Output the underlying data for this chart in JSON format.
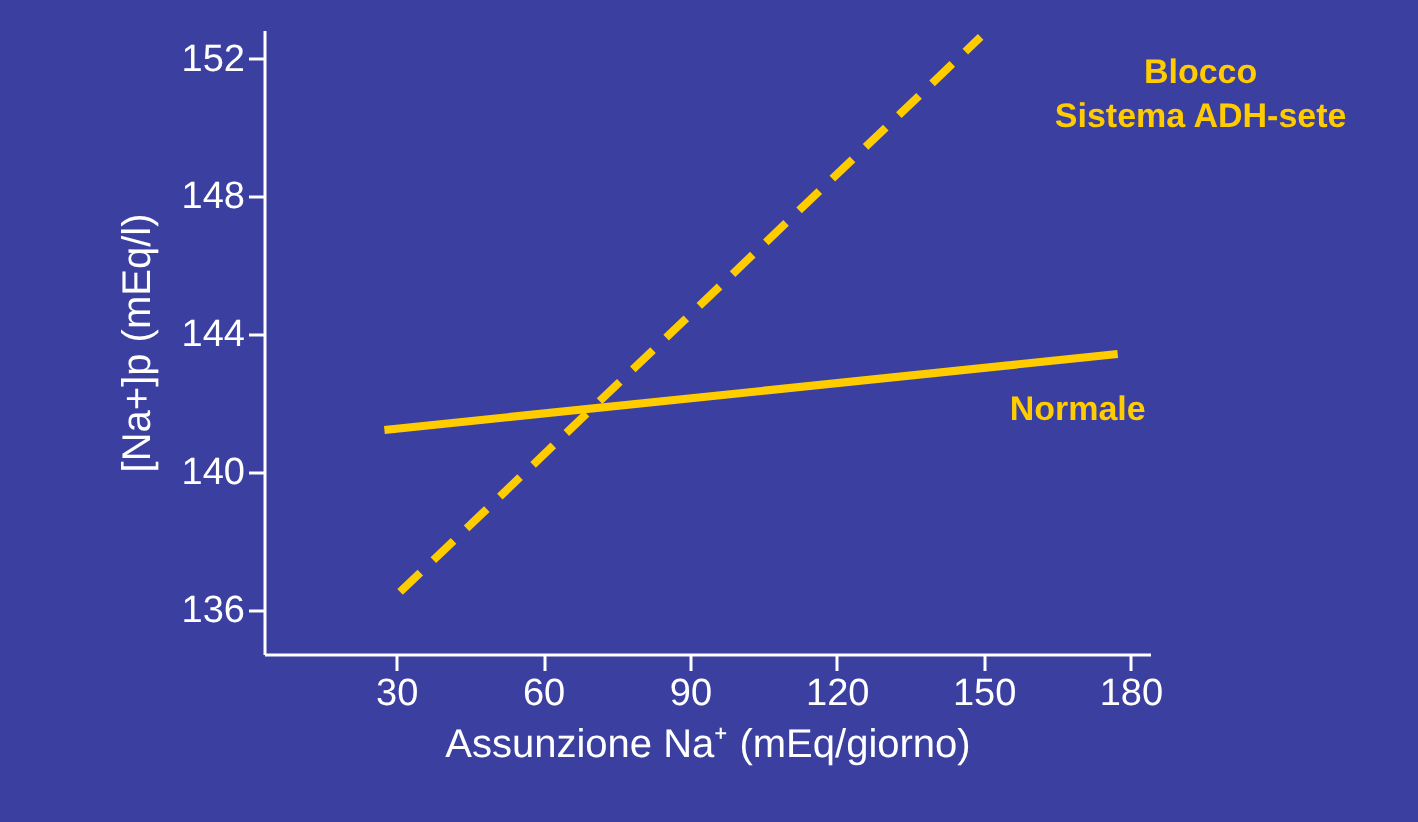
{
  "chart_data": {
    "type": "line",
    "xlabel": "Assunzione Na⁺ (mEq/giorno)",
    "ylabel": "[Na+]p (mEq/l)",
    "xlim": [
      3,
      184
    ],
    "xticks": [
      30,
      60,
      90,
      120,
      150,
      180
    ],
    "ylim": [
      134.7,
      152.8
    ],
    "yticks": [
      136,
      140,
      144,
      148,
      152
    ],
    "grid": false,
    "marker": "none",
    "series": [
      {
        "name": "Normale",
        "color": "#ffcc00",
        "line_style": "solid",
        "x": [
          27.6,
          177.4
        ],
        "values": [
          141.2,
          143.4
        ]
      },
      {
        "name": "Blocco\nSistema ADH-sete",
        "color": "#ffcc00",
        "line_style": "dashed",
        "x": [
          30.8,
          149.4
        ],
        "values": [
          136.5,
          152.6
        ]
      }
    ]
  }
}
